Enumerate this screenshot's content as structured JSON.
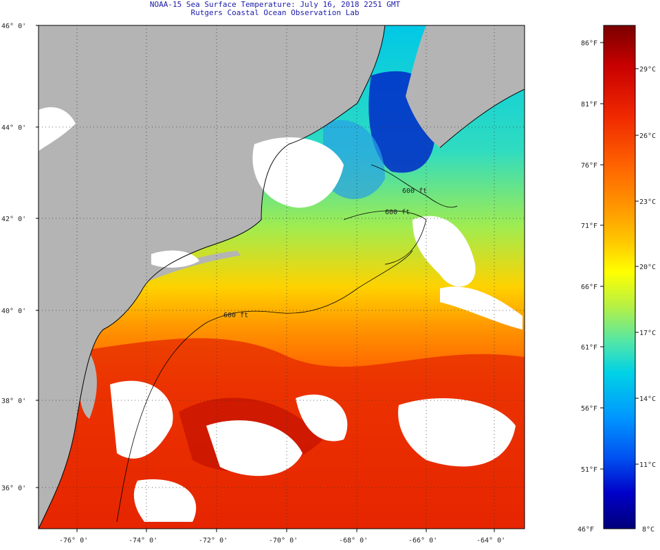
{
  "title": "NOAA-15 Sea Surface Temperature:  July 16, 2018 2251 GMT",
  "subtitle": "Rutgers Coastal Ocean Observation Lab",
  "map": {
    "lat_labels": [
      "46° 0'",
      "44° 0'",
      "42° 0'",
      "40° 0'",
      "38° 0'",
      "36° 0'"
    ],
    "lon_labels": [
      "-76° 0'",
      "-74° 0'",
      "-72° 0'",
      "-70° 0'",
      "-68° 0'",
      "-66° 0'",
      "-64° 0'"
    ],
    "contour_labels": [
      "600 ft",
      "600 ft",
      "600 ft"
    ],
    "colors": {
      "land": "#b4b4b4",
      "cloud": "#ffffff",
      "coast": "#000000"
    }
  },
  "colorbar": {
    "fahrenheit_labels": [
      "86°F",
      "81°F",
      "76°F",
      "71°F",
      "66°F",
      "61°F",
      "56°F",
      "51°F",
      "46°F"
    ],
    "celsius_labels": [
      "29°C",
      "26°C",
      "23°C",
      "20°C",
      "17°C",
      "14°C",
      "11°C",
      "8°C"
    ],
    "gradient": [
      "#7a0000",
      "#c80000",
      "#f02800",
      "#ff6400",
      "#ff9600",
      "#ffc800",
      "#ffff00",
      "#b4f046",
      "#50e6aa",
      "#00d2e6",
      "#0096ff",
      "#0050f0",
      "#0000c8",
      "#00007a"
    ]
  }
}
